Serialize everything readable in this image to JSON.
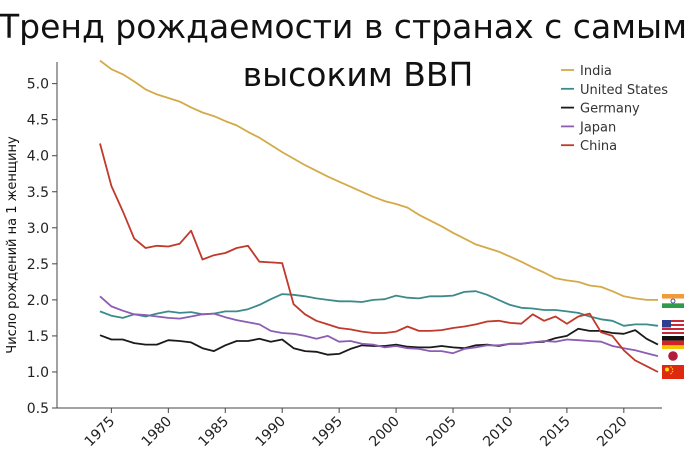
{
  "title_lines": [
    "Тренд рождаемости в странах с самым",
    "высоким ВВП"
  ],
  "chart_data": {
    "type": "line",
    "ylabel": "Число рождений на 1 женщину",
    "ylim": [
      0.5,
      5.3
    ],
    "xlim": [
      1972,
      2024
    ],
    "yticks": [
      0.5,
      1.0,
      1.5,
      2.0,
      2.5,
      3.0,
      3.5,
      4.0,
      4.5,
      5.0
    ],
    "xticks": [
      1975,
      1980,
      1985,
      1990,
      1995,
      2000,
      2005,
      2010,
      2015,
      2020
    ],
    "grid": false,
    "legend_position": "top-right",
    "series": [
      {
        "name": "India",
        "color": "#d4aa48",
        "flag": "flag-india",
        "points": [
          [
            1974,
            5.32
          ],
          [
            1975,
            5.2
          ],
          [
            1976,
            5.13
          ],
          [
            1977,
            5.03
          ],
          [
            1978,
            4.92
          ],
          [
            1979,
            4.85
          ],
          [
            1980,
            4.8
          ],
          [
            1981,
            4.75
          ],
          [
            1982,
            4.67
          ],
          [
            1983,
            4.6
          ],
          [
            1984,
            4.55
          ],
          [
            1985,
            4.48
          ],
          [
            1986,
            4.42
          ],
          [
            1987,
            4.33
          ],
          [
            1988,
            4.25
          ],
          [
            1989,
            4.15
          ],
          [
            1990,
            4.05
          ],
          [
            1991,
            3.96
          ],
          [
            1992,
            3.87
          ],
          [
            1993,
            3.79
          ],
          [
            1994,
            3.71
          ],
          [
            1995,
            3.64
          ],
          [
            1996,
            3.57
          ],
          [
            1997,
            3.5
          ],
          [
            1998,
            3.43
          ],
          [
            1999,
            3.37
          ],
          [
            2000,
            3.33
          ],
          [
            2001,
            3.28
          ],
          [
            2002,
            3.18
          ],
          [
            2003,
            3.1
          ],
          [
            2004,
            3.02
          ],
          [
            2005,
            2.93
          ],
          [
            2006,
            2.85
          ],
          [
            2007,
            2.77
          ],
          [
            2008,
            2.72
          ],
          [
            2009,
            2.67
          ],
          [
            2010,
            2.6
          ],
          [
            2011,
            2.53
          ],
          [
            2012,
            2.45
          ],
          [
            2013,
            2.38
          ],
          [
            2014,
            2.3
          ],
          [
            2015,
            2.27
          ],
          [
            2016,
            2.25
          ],
          [
            2017,
            2.2
          ],
          [
            2018,
            2.18
          ],
          [
            2019,
            2.12
          ],
          [
            2020,
            2.05
          ],
          [
            2021,
            2.02
          ],
          [
            2022,
            2.0
          ],
          [
            2023,
            2.0
          ]
        ]
      },
      {
        "name": "United States",
        "color": "#3c8a8a",
        "flag": "flag-usa",
        "points": [
          [
            1974,
            1.84
          ],
          [
            1975,
            1.78
          ],
          [
            1976,
            1.75
          ],
          [
            1977,
            1.8
          ],
          [
            1978,
            1.77
          ],
          [
            1979,
            1.81
          ],
          [
            1980,
            1.84
          ],
          [
            1981,
            1.82
          ],
          [
            1982,
            1.83
          ],
          [
            1983,
            1.8
          ],
          [
            1984,
            1.81
          ],
          [
            1985,
            1.84
          ],
          [
            1986,
            1.84
          ],
          [
            1987,
            1.87
          ],
          [
            1988,
            1.93
          ],
          [
            1989,
            2.01
          ],
          [
            1990,
            2.08
          ],
          [
            1991,
            2.07
          ],
          [
            1992,
            2.05
          ],
          [
            1993,
            2.02
          ],
          [
            1994,
            2.0
          ],
          [
            1995,
            1.98
          ],
          [
            1996,
            1.98
          ],
          [
            1997,
            1.97
          ],
          [
            1998,
            2.0
          ],
          [
            1999,
            2.01
          ],
          [
            2000,
            2.06
          ],
          [
            2001,
            2.03
          ],
          [
            2002,
            2.02
          ],
          [
            2003,
            2.05
          ],
          [
            2004,
            2.05
          ],
          [
            2005,
            2.06
          ],
          [
            2006,
            2.11
          ],
          [
            2007,
            2.12
          ],
          [
            2008,
            2.07
          ],
          [
            2009,
            2.0
          ],
          [
            2010,
            1.93
          ],
          [
            2011,
            1.89
          ],
          [
            2012,
            1.88
          ],
          [
            2013,
            1.86
          ],
          [
            2014,
            1.86
          ],
          [
            2015,
            1.84
          ],
          [
            2016,
            1.82
          ],
          [
            2017,
            1.77
          ],
          [
            2018,
            1.73
          ],
          [
            2019,
            1.71
          ],
          [
            2020,
            1.64
          ],
          [
            2021,
            1.66
          ],
          [
            2022,
            1.66
          ],
          [
            2023,
            1.64
          ]
        ]
      },
      {
        "name": "Germany",
        "color": "#1a1a1a",
        "flag": "flag-germany",
        "points": [
          [
            1974,
            1.51
          ],
          [
            1975,
            1.45
          ],
          [
            1976,
            1.45
          ],
          [
            1977,
            1.4
          ],
          [
            1978,
            1.38
          ],
          [
            1979,
            1.38
          ],
          [
            1980,
            1.44
          ],
          [
            1981,
            1.43
          ],
          [
            1982,
            1.41
          ],
          [
            1983,
            1.33
          ],
          [
            1984,
            1.29
          ],
          [
            1985,
            1.37
          ],
          [
            1986,
            1.43
          ],
          [
            1987,
            1.43
          ],
          [
            1988,
            1.46
          ],
          [
            1989,
            1.42
          ],
          [
            1990,
            1.45
          ],
          [
            1991,
            1.33
          ],
          [
            1992,
            1.29
          ],
          [
            1993,
            1.28
          ],
          [
            1994,
            1.24
          ],
          [
            1995,
            1.25
          ],
          [
            1996,
            1.32
          ],
          [
            1997,
            1.37
          ],
          [
            1998,
            1.36
          ],
          [
            1999,
            1.36
          ],
          [
            2000,
            1.38
          ],
          [
            2001,
            1.35
          ],
          [
            2002,
            1.34
          ],
          [
            2003,
            1.34
          ],
          [
            2004,
            1.36
          ],
          [
            2005,
            1.34
          ],
          [
            2006,
            1.33
          ],
          [
            2007,
            1.37
          ],
          [
            2008,
            1.38
          ],
          [
            2009,
            1.36
          ],
          [
            2010,
            1.39
          ],
          [
            2011,
            1.39
          ],
          [
            2012,
            1.41
          ],
          [
            2013,
            1.42
          ],
          [
            2014,
            1.47
          ],
          [
            2015,
            1.5
          ],
          [
            2016,
            1.6
          ],
          [
            2017,
            1.57
          ],
          [
            2018,
            1.57
          ],
          [
            2019,
            1.54
          ],
          [
            2020,
            1.53
          ],
          [
            2021,
            1.58
          ],
          [
            2022,
            1.46
          ],
          [
            2023,
            1.38
          ]
        ]
      },
      {
        "name": "Japan",
        "color": "#8d5cb3",
        "flag": "flag-japan",
        "points": [
          [
            1974,
            2.05
          ],
          [
            1975,
            1.91
          ],
          [
            1976,
            1.85
          ],
          [
            1977,
            1.8
          ],
          [
            1978,
            1.79
          ],
          [
            1979,
            1.77
          ],
          [
            1980,
            1.75
          ],
          [
            1981,
            1.74
          ],
          [
            1982,
            1.77
          ],
          [
            1983,
            1.8
          ],
          [
            1984,
            1.81
          ],
          [
            1985,
            1.76
          ],
          [
            1986,
            1.72
          ],
          [
            1987,
            1.69
          ],
          [
            1988,
            1.66
          ],
          [
            1989,
            1.57
          ],
          [
            1990,
            1.54
          ],
          [
            1991,
            1.53
          ],
          [
            1992,
            1.5
          ],
          [
            1993,
            1.46
          ],
          [
            1994,
            1.5
          ],
          [
            1995,
            1.42
          ],
          [
            1996,
            1.43
          ],
          [
            1997,
            1.39
          ],
          [
            1998,
            1.38
          ],
          [
            1999,
            1.34
          ],
          [
            2000,
            1.36
          ],
          [
            2001,
            1.33
          ],
          [
            2002,
            1.32
          ],
          [
            2003,
            1.29
          ],
          [
            2004,
            1.29
          ],
          [
            2005,
            1.26
          ],
          [
            2006,
            1.32
          ],
          [
            2007,
            1.34
          ],
          [
            2008,
            1.37
          ],
          [
            2009,
            1.37
          ],
          [
            2010,
            1.39
          ],
          [
            2011,
            1.39
          ],
          [
            2012,
            1.41
          ],
          [
            2013,
            1.43
          ],
          [
            2014,
            1.42
          ],
          [
            2015,
            1.45
          ],
          [
            2016,
            1.44
          ],
          [
            2017,
            1.43
          ],
          [
            2018,
            1.42
          ],
          [
            2019,
            1.36
          ],
          [
            2020,
            1.33
          ],
          [
            2021,
            1.3
          ],
          [
            2022,
            1.26
          ],
          [
            2023,
            1.22
          ]
        ]
      },
      {
        "name": "China",
        "color": "#c0392b",
        "flag": "flag-china",
        "points": [
          [
            1974,
            4.17
          ],
          [
            1975,
            3.58
          ],
          [
            1976,
            3.23
          ],
          [
            1977,
            2.85
          ],
          [
            1978,
            2.72
          ],
          [
            1979,
            2.75
          ],
          [
            1980,
            2.74
          ],
          [
            1981,
            2.78
          ],
          [
            1982,
            2.96
          ],
          [
            1983,
            2.56
          ],
          [
            1984,
            2.62
          ],
          [
            1985,
            2.65
          ],
          [
            1986,
            2.72
          ],
          [
            1987,
            2.75
          ],
          [
            1988,
            2.53
          ],
          [
            1989,
            2.52
          ],
          [
            1990,
            2.51
          ],
          [
            1991,
            1.94
          ],
          [
            1992,
            1.8
          ],
          [
            1993,
            1.71
          ],
          [
            1994,
            1.66
          ],
          [
            1995,
            1.61
          ],
          [
            1996,
            1.59
          ],
          [
            1997,
            1.56
          ],
          [
            1998,
            1.54
          ],
          [
            1999,
            1.54
          ],
          [
            2000,
            1.56
          ],
          [
            2001,
            1.63
          ],
          [
            2002,
            1.57
          ],
          [
            2003,
            1.57
          ],
          [
            2004,
            1.58
          ],
          [
            2005,
            1.61
          ],
          [
            2006,
            1.63
          ],
          [
            2007,
            1.66
          ],
          [
            2008,
            1.7
          ],
          [
            2009,
            1.71
          ],
          [
            2010,
            1.68
          ],
          [
            2011,
            1.67
          ],
          [
            2012,
            1.8
          ],
          [
            2013,
            1.71
          ],
          [
            2014,
            1.77
          ],
          [
            2015,
            1.67
          ],
          [
            2016,
            1.77
          ],
          [
            2017,
            1.81
          ],
          [
            2018,
            1.55
          ],
          [
            2019,
            1.5
          ],
          [
            2020,
            1.3
          ],
          [
            2021,
            1.16
          ],
          [
            2022,
            1.08
          ],
          [
            2023,
            1.0
          ]
        ]
      }
    ]
  }
}
